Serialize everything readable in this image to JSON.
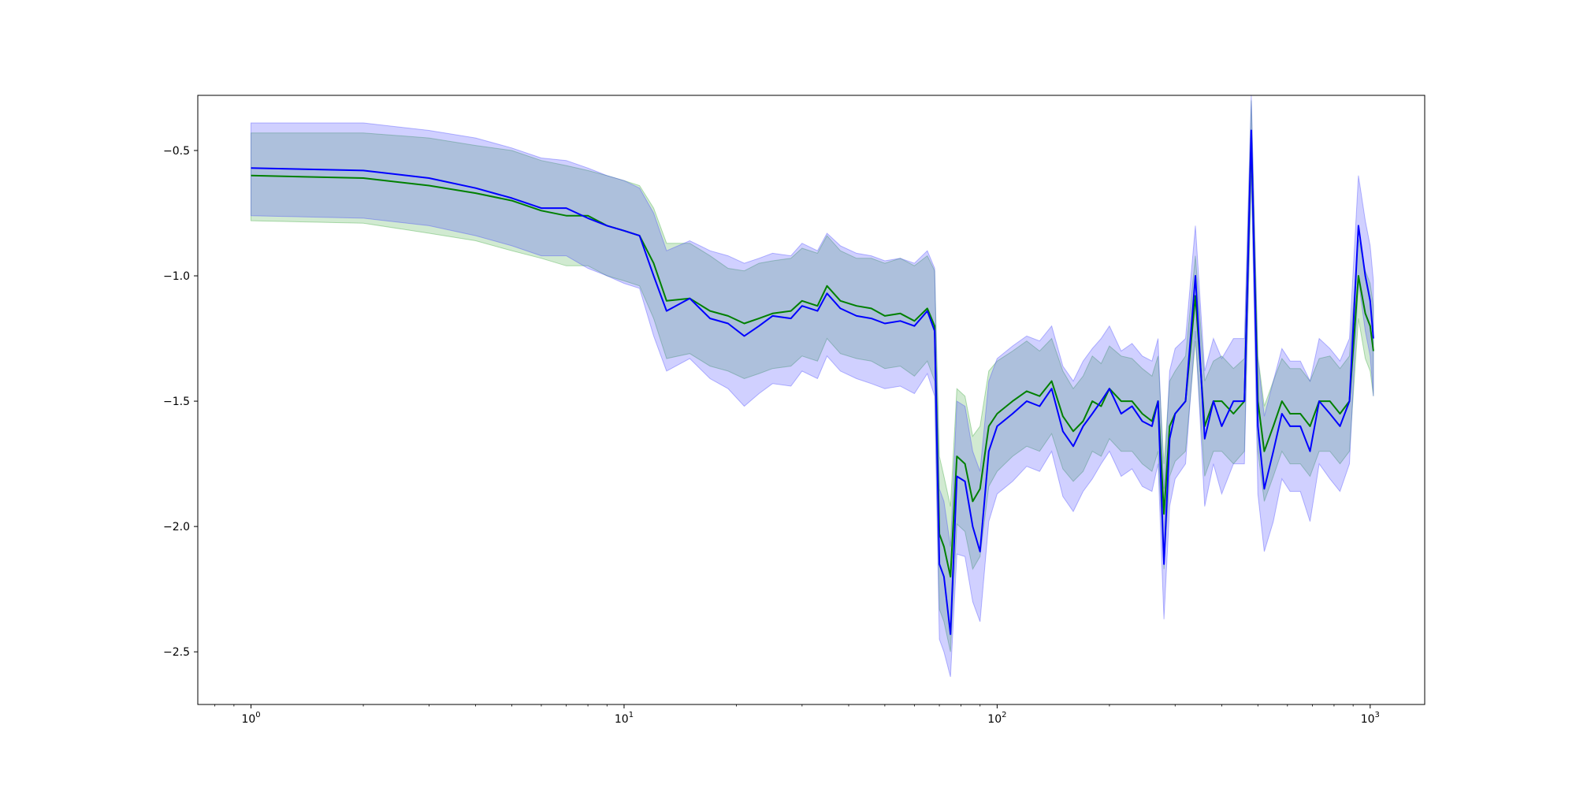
{
  "chart_data": {
    "type": "line",
    "title": "",
    "xlabel": "",
    "ylabel": "",
    "xscale": "log",
    "xlim": [
      0.72,
      1400
    ],
    "ylim": [
      -2.71,
      -0.28
    ],
    "grid": false,
    "legend": "none",
    "x_ticks": [
      {
        "value": 1,
        "label": "10",
        "exp": "0"
      },
      {
        "value": 10,
        "label": "10",
        "exp": "1"
      },
      {
        "value": 100,
        "label": "10",
        "exp": "2"
      },
      {
        "value": 1000,
        "label": "10",
        "exp": "3"
      }
    ],
    "y_ticks": [
      {
        "value": -0.5,
        "label": "−0.5"
      },
      {
        "value": -1.0,
        "label": "−1.0"
      },
      {
        "value": -1.5,
        "label": "−1.5"
      },
      {
        "value": -2.0,
        "label": "−2.0"
      },
      {
        "value": -2.5,
        "label": "−2.5"
      }
    ],
    "series": [
      {
        "color": "#008000",
        "band_color": "#2ca02c",
        "band_opacity": 0.22,
        "x": [
          1,
          2,
          3,
          4,
          5,
          6,
          7,
          8,
          9,
          10,
          11,
          12,
          13,
          15,
          17,
          19,
          21,
          23,
          25,
          28,
          30,
          33,
          35,
          38,
          42,
          46,
          50,
          55,
          60,
          65,
          68,
          70,
          72,
          75,
          78,
          82,
          86,
          90,
          95,
          100,
          110,
          120,
          130,
          140,
          150,
          160,
          170,
          180,
          190,
          200,
          215,
          230,
          245,
          260,
          270,
          280,
          290,
          300,
          320,
          340,
          360,
          380,
          400,
          430,
          460,
          480,
          500,
          520,
          550,
          580,
          610,
          650,
          690,
          730,
          780,
          830,
          880,
          930,
          970,
          1000,
          1020
        ],
        "mean": [
          -0.6,
          -0.61,
          -0.64,
          -0.67,
          -0.7,
          -0.74,
          -0.76,
          -0.76,
          -0.8,
          -0.82,
          -0.84,
          -0.95,
          -1.1,
          -1.09,
          -1.14,
          -1.16,
          -1.19,
          -1.17,
          -1.15,
          -1.14,
          -1.1,
          -1.12,
          -1.04,
          -1.1,
          -1.12,
          -1.13,
          -1.16,
          -1.15,
          -1.18,
          -1.13,
          -1.2,
          -2.03,
          -2.08,
          -2.2,
          -1.72,
          -1.75,
          -1.9,
          -1.85,
          -1.6,
          -1.55,
          -1.5,
          -1.46,
          -1.48,
          -1.42,
          -1.56,
          -1.62,
          -1.58,
          -1.5,
          -1.52,
          -1.45,
          -1.5,
          -1.5,
          -1.55,
          -1.58,
          -1.5,
          -1.95,
          -1.6,
          -1.55,
          -1.5,
          -1.08,
          -1.6,
          -1.5,
          -1.5,
          -1.55,
          -1.5,
          -0.45,
          -1.5,
          -1.7,
          -1.6,
          -1.5,
          -1.55,
          -1.55,
          -1.6,
          -1.5,
          -1.5,
          -1.55,
          -1.5,
          -1.0,
          -1.15,
          -1.2,
          -1.3
        ],
        "upper": [
          -0.43,
          -0.43,
          -0.45,
          -0.48,
          -0.5,
          -0.54,
          -0.56,
          -0.58,
          -0.6,
          -0.62,
          -0.64,
          -0.73,
          -0.87,
          -0.87,
          -0.92,
          -0.97,
          -0.98,
          -0.95,
          -0.94,
          -0.93,
          -0.89,
          -0.91,
          -0.84,
          -0.9,
          -0.93,
          -0.93,
          -0.95,
          -0.93,
          -0.96,
          -0.92,
          -0.98,
          -1.72,
          -1.8,
          -1.92,
          -1.45,
          -1.48,
          -1.64,
          -1.6,
          -1.38,
          -1.34,
          -1.3,
          -1.26,
          -1.3,
          -1.25,
          -1.38,
          -1.45,
          -1.4,
          -1.32,
          -1.35,
          -1.28,
          -1.32,
          -1.33,
          -1.37,
          -1.4,
          -1.32,
          -1.75,
          -1.42,
          -1.38,
          -1.32,
          -0.92,
          -1.42,
          -1.34,
          -1.32,
          -1.37,
          -1.33,
          -0.3,
          -1.32,
          -1.52,
          -1.42,
          -1.33,
          -1.37,
          -1.37,
          -1.42,
          -1.33,
          -1.32,
          -1.37,
          -1.32,
          -0.85,
          -0.98,
          -1.03,
          -1.12
        ],
        "lower": [
          -0.78,
          -0.79,
          -0.83,
          -0.86,
          -0.9,
          -0.93,
          -0.96,
          -0.96,
          -1.0,
          -1.02,
          -1.04,
          -1.17,
          -1.33,
          -1.31,
          -1.36,
          -1.38,
          -1.41,
          -1.39,
          -1.37,
          -1.36,
          -1.32,
          -1.34,
          -1.25,
          -1.31,
          -1.33,
          -1.34,
          -1.37,
          -1.36,
          -1.4,
          -1.34,
          -1.42,
          -2.33,
          -2.38,
          -2.5,
          -1.99,
          -2.02,
          -2.17,
          -2.12,
          -1.84,
          -1.78,
          -1.72,
          -1.68,
          -1.7,
          -1.63,
          -1.77,
          -1.82,
          -1.78,
          -1.7,
          -1.72,
          -1.65,
          -1.7,
          -1.7,
          -1.75,
          -1.78,
          -1.7,
          -2.17,
          -1.8,
          -1.74,
          -1.7,
          -1.26,
          -1.8,
          -1.7,
          -1.7,
          -1.75,
          -1.7,
          -0.6,
          -1.7,
          -1.9,
          -1.8,
          -1.7,
          -1.75,
          -1.75,
          -1.8,
          -1.7,
          -1.7,
          -1.75,
          -1.7,
          -1.17,
          -1.33,
          -1.38,
          -1.48
        ]
      },
      {
        "color": "#0000ff",
        "band_color": "#3a3aff",
        "band_opacity": 0.24,
        "x": [
          1,
          2,
          3,
          4,
          5,
          6,
          7,
          8,
          9,
          10,
          11,
          12,
          13,
          15,
          17,
          19,
          21,
          23,
          25,
          28,
          30,
          33,
          35,
          38,
          42,
          46,
          50,
          55,
          60,
          65,
          68,
          70,
          72,
          75,
          78,
          82,
          86,
          90,
          95,
          100,
          110,
          120,
          130,
          140,
          150,
          160,
          170,
          180,
          190,
          200,
          215,
          230,
          245,
          260,
          270,
          280,
          290,
          300,
          320,
          340,
          360,
          380,
          400,
          430,
          460,
          480,
          500,
          520,
          550,
          580,
          610,
          650,
          690,
          730,
          780,
          830,
          880,
          930,
          970,
          1000,
          1020
        ],
        "mean": [
          -0.57,
          -0.58,
          -0.61,
          -0.65,
          -0.69,
          -0.73,
          -0.73,
          -0.77,
          -0.8,
          -0.82,
          -0.84,
          -1.0,
          -1.14,
          -1.09,
          -1.17,
          -1.19,
          -1.24,
          -1.2,
          -1.16,
          -1.17,
          -1.12,
          -1.14,
          -1.07,
          -1.13,
          -1.16,
          -1.17,
          -1.19,
          -1.18,
          -1.2,
          -1.14,
          -1.22,
          -2.15,
          -2.2,
          -2.43,
          -1.8,
          -1.82,
          -2.0,
          -2.1,
          -1.7,
          -1.6,
          -1.55,
          -1.5,
          -1.52,
          -1.45,
          -1.62,
          -1.68,
          -1.6,
          -1.55,
          -1.5,
          -1.45,
          -1.55,
          -1.52,
          -1.58,
          -1.6,
          -1.5,
          -2.15,
          -1.65,
          -1.55,
          -1.5,
          -1.0,
          -1.65,
          -1.5,
          -1.6,
          -1.5,
          -1.5,
          -0.42,
          -1.6,
          -1.85,
          -1.7,
          -1.55,
          -1.6,
          -1.6,
          -1.7,
          -1.5,
          -1.55,
          -1.6,
          -1.5,
          -0.8,
          -1.0,
          -1.1,
          -1.25
        ],
        "upper": [
          -0.39,
          -0.39,
          -0.42,
          -0.45,
          -0.49,
          -0.53,
          -0.54,
          -0.57,
          -0.6,
          -0.62,
          -0.65,
          -0.75,
          -0.9,
          -0.86,
          -0.9,
          -0.92,
          -0.95,
          -0.93,
          -0.91,
          -0.92,
          -0.87,
          -0.9,
          -0.83,
          -0.88,
          -0.91,
          -0.92,
          -0.94,
          -0.93,
          -0.95,
          -0.9,
          -0.97,
          -1.85,
          -1.9,
          -2.08,
          -1.5,
          -1.52,
          -1.7,
          -1.78,
          -1.42,
          -1.33,
          -1.28,
          -1.24,
          -1.26,
          -1.2,
          -1.36,
          -1.42,
          -1.34,
          -1.29,
          -1.25,
          -1.2,
          -1.3,
          -1.27,
          -1.32,
          -1.34,
          -1.25,
          -1.85,
          -1.38,
          -1.29,
          -1.25,
          -0.8,
          -1.38,
          -1.25,
          -1.33,
          -1.25,
          -1.25,
          -0.28,
          -1.33,
          -1.56,
          -1.42,
          -1.29,
          -1.34,
          -1.34,
          -1.42,
          -1.25,
          -1.29,
          -1.34,
          -1.25,
          -0.6,
          -0.78,
          -0.88,
          -1.02
        ],
        "lower": [
          -0.76,
          -0.77,
          -0.8,
          -0.84,
          -0.88,
          -0.92,
          -0.92,
          -0.97,
          -1.0,
          -1.03,
          -1.05,
          -1.24,
          -1.38,
          -1.33,
          -1.41,
          -1.45,
          -1.52,
          -1.47,
          -1.43,
          -1.44,
          -1.38,
          -1.41,
          -1.32,
          -1.38,
          -1.41,
          -1.43,
          -1.45,
          -1.44,
          -1.47,
          -1.39,
          -1.48,
          -2.45,
          -2.5,
          -2.6,
          -2.11,
          -2.12,
          -2.3,
          -2.38,
          -1.98,
          -1.87,
          -1.82,
          -1.76,
          -1.78,
          -1.7,
          -1.88,
          -1.94,
          -1.86,
          -1.81,
          -1.75,
          -1.7,
          -1.8,
          -1.77,
          -1.84,
          -1.86,
          -1.75,
          -2.37,
          -1.92,
          -1.81,
          -1.75,
          -1.22,
          -1.92,
          -1.75,
          -1.87,
          -1.75,
          -1.75,
          -0.58,
          -1.87,
          -2.1,
          -1.98,
          -1.81,
          -1.86,
          -1.86,
          -1.98,
          -1.75,
          -1.81,
          -1.86,
          -1.75,
          -1.02,
          -1.22,
          -1.32,
          -1.48
        ]
      }
    ]
  }
}
